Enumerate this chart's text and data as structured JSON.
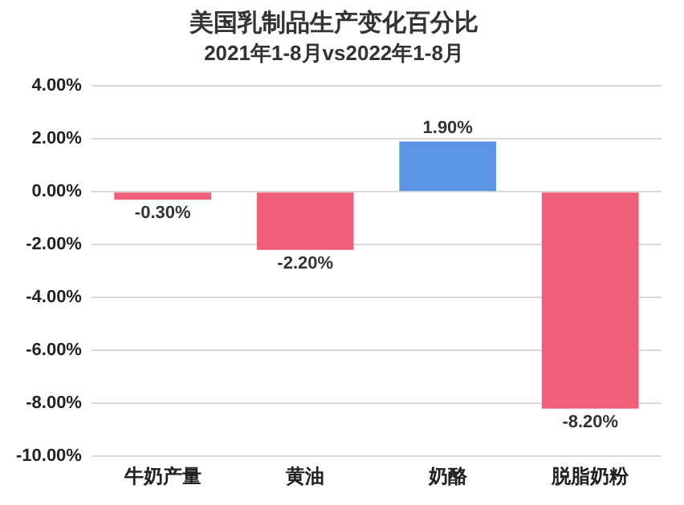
{
  "chart_data": {
    "type": "bar",
    "title": "美国乳制品生产变化百分比",
    "subtitle": "2021年1-8月vs2022年1-8月",
    "categories": [
      "牛奶产量",
      "黄油",
      "奶酪",
      "脱脂奶粉"
    ],
    "values": [
      -0.3,
      -2.2,
      1.9,
      -8.2
    ],
    "colors": [
      "#ef5f78",
      "#ef5f78",
      "#5c95e6",
      "#ef5f78"
    ],
    "value_labels": [
      "-0.30%",
      "-2.20%",
      "1.90%",
      "-8.20%"
    ],
    "ylim": [
      -10,
      4
    ],
    "yticks": [
      {
        "value": -10,
        "label": "-10.00%"
      },
      {
        "value": -8,
        "label": "-8.00%"
      },
      {
        "value": -6,
        "label": "-6.00%"
      },
      {
        "value": -4,
        "label": "-4.00%"
      },
      {
        "value": -2,
        "label": "-2.00%"
      },
      {
        "value": 0,
        "label": "0.00%"
      },
      {
        "value": 2,
        "label": "2.00%"
      },
      {
        "value": 4,
        "label": "4.00%"
      }
    ],
    "grid": "y",
    "legend": false
  }
}
